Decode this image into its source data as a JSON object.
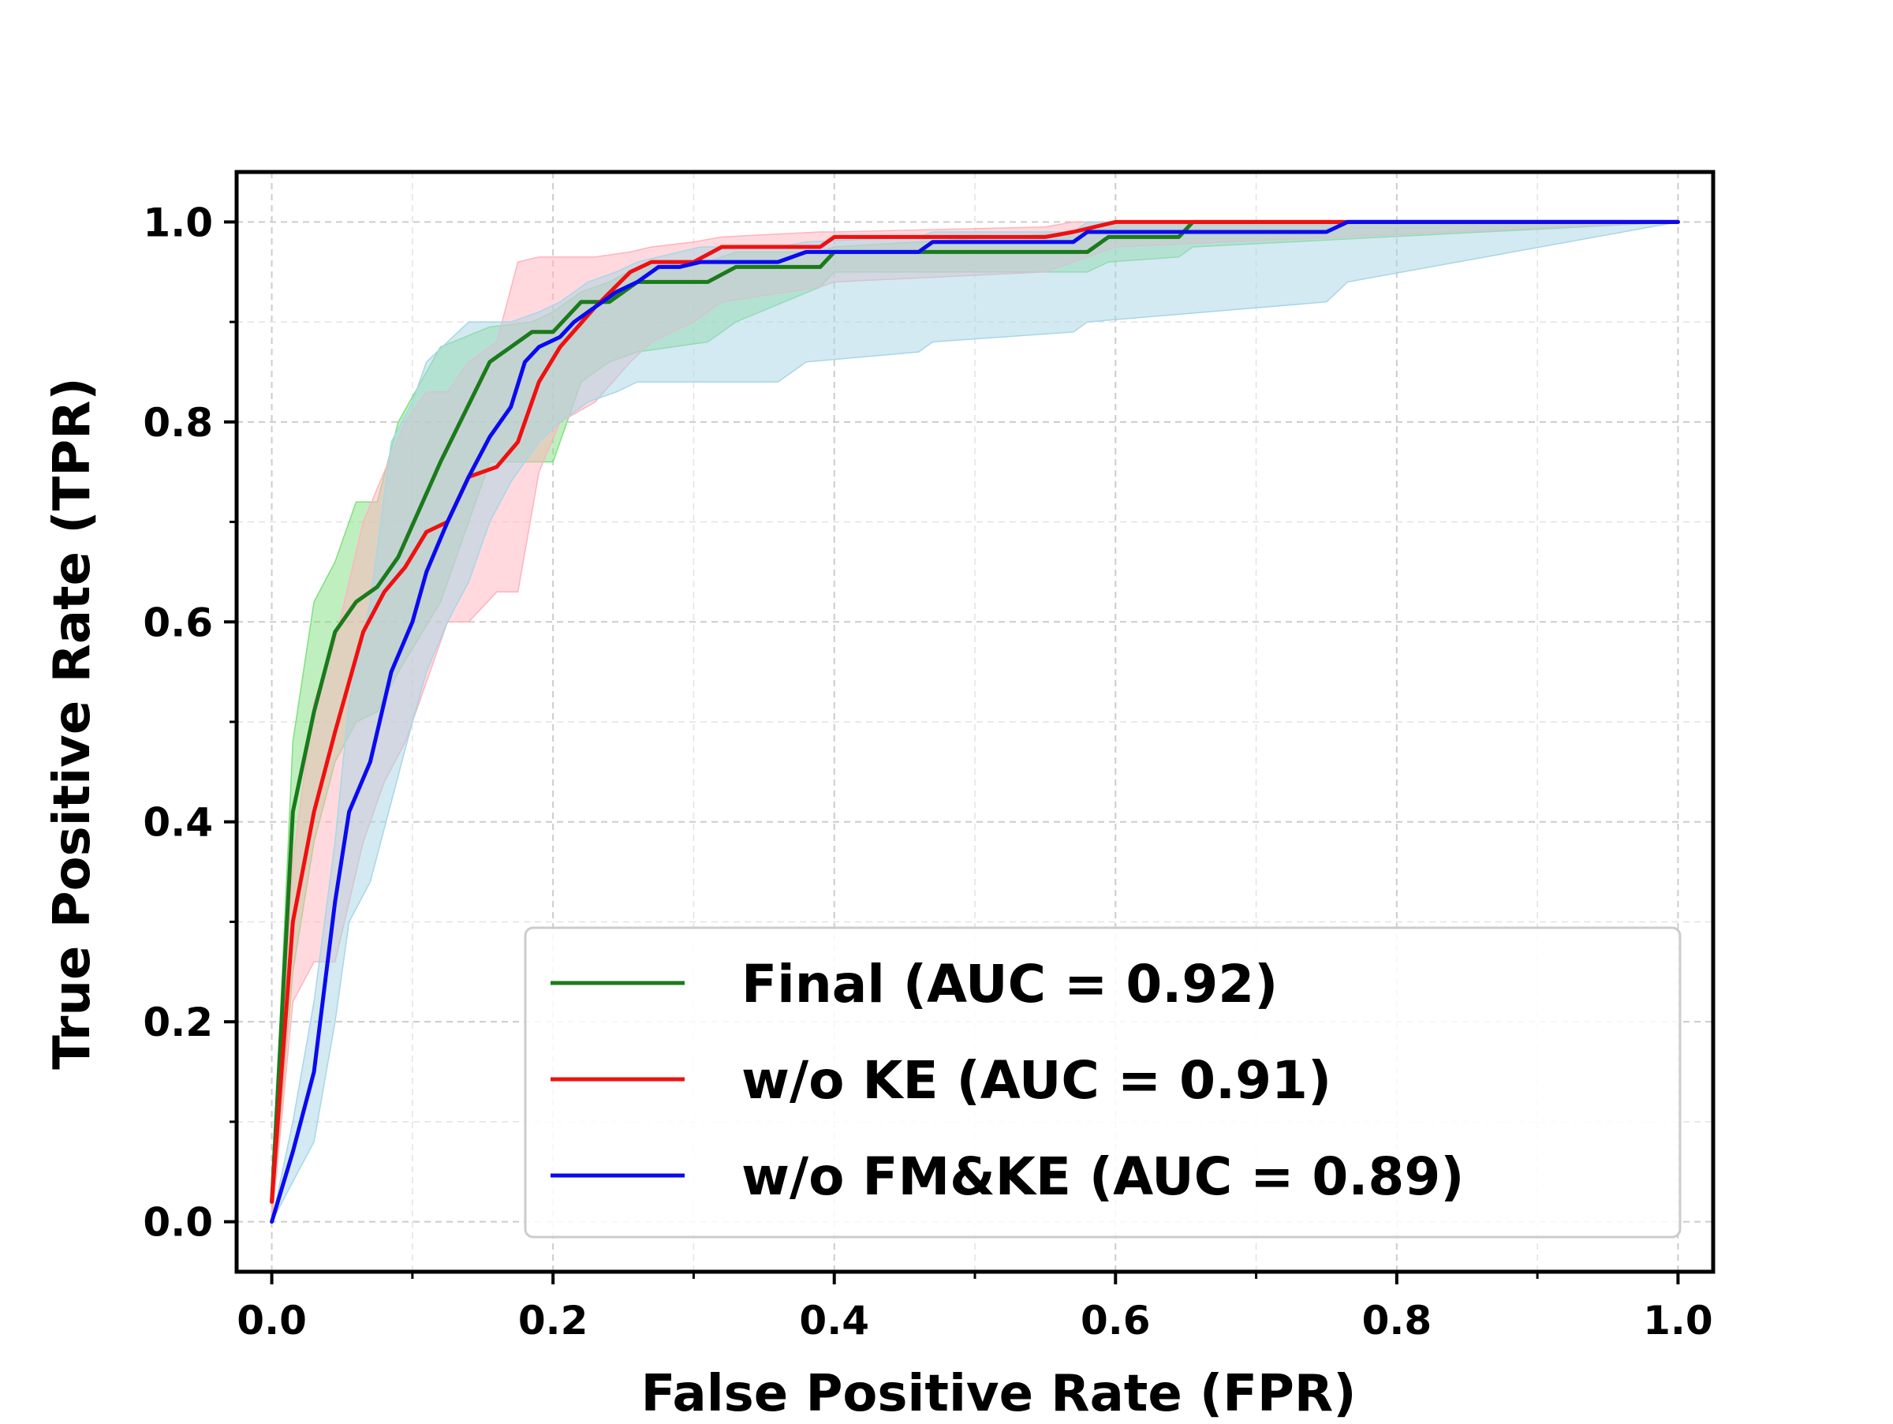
{
  "chart_data": {
    "type": "line",
    "title": "",
    "xlabel": "False Positive Rate (FPR)",
    "ylabel": "True Positive Rate (TPR)",
    "xlim": [
      -0.025,
      1.025
    ],
    "ylim": [
      -0.05,
      1.05
    ],
    "grid": true,
    "legend_position": "lower-right",
    "x_ticks": [
      0.0,
      0.2,
      0.4,
      0.6,
      0.8,
      1.0
    ],
    "x_tick_labels": [
      "0.0",
      "0.2",
      "0.4",
      "0.6",
      "0.8",
      "1.0"
    ],
    "y_ticks": [
      0.0,
      0.2,
      0.4,
      0.6,
      0.8,
      1.0
    ],
    "y_tick_labels": [
      "0.0",
      "0.2",
      "0.4",
      "0.6",
      "0.8",
      "1.0"
    ],
    "series": [
      {
        "name": "Final (AUC = 0.92)",
        "color": "#1b7a1b",
        "band_color": "#7fe07f",
        "x": [
          0.0,
          0.015,
          0.03,
          0.045,
          0.06,
          0.075,
          0.09,
          0.12,
          0.155,
          0.185,
          0.2,
          0.22,
          0.24,
          0.26,
          0.31,
          0.33,
          0.39,
          0.4,
          0.58,
          0.595,
          0.645,
          0.655,
          1.0
        ],
        "y": [
          0.02,
          0.41,
          0.51,
          0.59,
          0.62,
          0.635,
          0.665,
          0.76,
          0.86,
          0.89,
          0.89,
          0.92,
          0.92,
          0.94,
          0.94,
          0.955,
          0.955,
          0.97,
          0.97,
          0.985,
          0.985,
          1.0,
          1.0
        ],
        "band_upper": [
          0.02,
          0.48,
          0.62,
          0.66,
          0.72,
          0.72,
          0.8,
          0.875,
          0.895,
          0.9,
          0.91,
          0.93,
          0.94,
          0.955,
          0.96,
          0.97,
          0.97,
          0.975,
          0.99,
          1.0,
          1.0,
          1.0,
          1.0
        ],
        "band_lower": [
          0.0,
          0.25,
          0.38,
          0.46,
          0.5,
          0.51,
          0.55,
          0.62,
          0.76,
          0.76,
          0.76,
          0.84,
          0.86,
          0.87,
          0.88,
          0.9,
          0.935,
          0.95,
          0.95,
          0.96,
          0.965,
          0.975,
          1.0
        ]
      },
      {
        "name": "w/o KE (AUC = 0.91)",
        "color": "#f01010",
        "band_color": "#ffb3bd",
        "x": [
          0.0,
          0.015,
          0.03,
          0.045,
          0.065,
          0.08,
          0.095,
          0.11,
          0.125,
          0.14,
          0.16,
          0.175,
          0.19,
          0.205,
          0.23,
          0.255,
          0.27,
          0.3,
          0.32,
          0.39,
          0.4,
          0.55,
          0.57,
          0.6,
          1.0
        ],
        "y": [
          0.02,
          0.3,
          0.41,
          0.49,
          0.59,
          0.63,
          0.655,
          0.69,
          0.7,
          0.745,
          0.755,
          0.78,
          0.84,
          0.875,
          0.915,
          0.95,
          0.96,
          0.96,
          0.975,
          0.975,
          0.985,
          0.985,
          0.99,
          1.0,
          1.0
        ],
        "band_upper": [
          0.02,
          0.36,
          0.52,
          0.58,
          0.7,
          0.75,
          0.8,
          0.83,
          0.83,
          0.86,
          0.88,
          0.96,
          0.965,
          0.965,
          0.965,
          0.97,
          0.975,
          0.98,
          0.985,
          0.99,
          0.99,
          0.995,
          1.0,
          1.0,
          1.0
        ],
        "band_lower": [
          0.0,
          0.22,
          0.26,
          0.26,
          0.38,
          0.44,
          0.48,
          0.54,
          0.6,
          0.6,
          0.63,
          0.63,
          0.75,
          0.8,
          0.82,
          0.86,
          0.88,
          0.9,
          0.92,
          0.935,
          0.94,
          0.95,
          0.96,
          0.975,
          1.0
        ]
      },
      {
        "name": "w/o FM&KE (AUC = 0.89)",
        "color": "#0a0af0",
        "band_color": "#a8d6e6",
        "x": [
          0.0,
          0.015,
          0.03,
          0.045,
          0.055,
          0.07,
          0.085,
          0.1,
          0.11,
          0.125,
          0.14,
          0.155,
          0.17,
          0.18,
          0.19,
          0.205,
          0.215,
          0.225,
          0.245,
          0.26,
          0.275,
          0.29,
          0.305,
          0.36,
          0.38,
          0.46,
          0.47,
          0.57,
          0.58,
          0.75,
          0.765,
          1.0
        ],
        "y": [
          0.0,
          0.07,
          0.15,
          0.32,
          0.41,
          0.46,
          0.55,
          0.6,
          0.65,
          0.7,
          0.745,
          0.785,
          0.815,
          0.86,
          0.875,
          0.885,
          0.9,
          0.91,
          0.93,
          0.94,
          0.955,
          0.955,
          0.96,
          0.96,
          0.97,
          0.97,
          0.98,
          0.98,
          0.99,
          0.99,
          1.0,
          1.0
        ],
        "band_upper": [
          0.0,
          0.1,
          0.22,
          0.38,
          0.52,
          0.62,
          0.78,
          0.82,
          0.86,
          0.88,
          0.9,
          0.9,
          0.9,
          0.905,
          0.91,
          0.92,
          0.93,
          0.94,
          0.95,
          0.96,
          0.965,
          0.97,
          0.975,
          0.975,
          0.98,
          0.985,
          0.99,
          0.99,
          1.0,
          1.0,
          1.0,
          1.0
        ],
        "band_lower": [
          0.0,
          0.04,
          0.08,
          0.2,
          0.3,
          0.34,
          0.42,
          0.5,
          0.55,
          0.6,
          0.64,
          0.7,
          0.74,
          0.76,
          0.78,
          0.8,
          0.81,
          0.82,
          0.83,
          0.84,
          0.84,
          0.84,
          0.84,
          0.84,
          0.86,
          0.87,
          0.88,
          0.89,
          0.9,
          0.92,
          0.94,
          1.0
        ]
      }
    ]
  }
}
